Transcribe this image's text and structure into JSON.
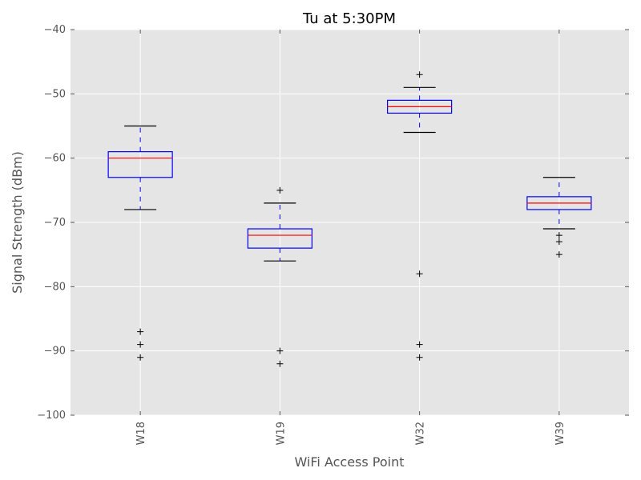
{
  "chart_data": {
    "type": "box",
    "title": "Tu at 5:30PM",
    "xlabel": "WiFi Access Point",
    "ylabel": "Signal Strength (dBm)",
    "ylim": [
      -100,
      -40
    ],
    "yticks": [
      -40,
      -50,
      -60,
      -70,
      -80,
      -90,
      -100
    ],
    "ytick_labels": [
      "−40",
      "−50",
      "−60",
      "−70",
      "−80",
      "−90",
      "−100"
    ],
    "grid": true,
    "categories": [
      "W18",
      "W19",
      "W32",
      "W39"
    ],
    "boxes": [
      {
        "category": "W18",
        "whisker_low": -68,
        "q1": -63,
        "median": -60,
        "q3": -59,
        "whisker_high": -55,
        "outliers": [
          -87,
          -89,
          -91
        ]
      },
      {
        "category": "W19",
        "whisker_low": -76,
        "q1": -74,
        "median": -72,
        "q3": -71,
        "whisker_high": -67,
        "outliers": [
          -65,
          -90,
          -92
        ]
      },
      {
        "category": "W32",
        "whisker_low": -56,
        "q1": -53,
        "median": -52,
        "q3": -51,
        "whisker_high": -49,
        "outliers": [
          -47,
          -78,
          -89,
          -91
        ]
      },
      {
        "category": "W39",
        "whisker_low": -71,
        "q1": -68,
        "median": -67,
        "q3": -66,
        "whisker_high": -63,
        "outliers": [
          -72,
          -73,
          -75
        ]
      }
    ],
    "colors": {
      "plot_background": "#e5e5e5",
      "grid": "#ffffff",
      "box": "#0000ff",
      "median": "#ff0000",
      "whisker": "#0000ff",
      "cap": "#000000",
      "outlier": "#000000"
    }
  }
}
